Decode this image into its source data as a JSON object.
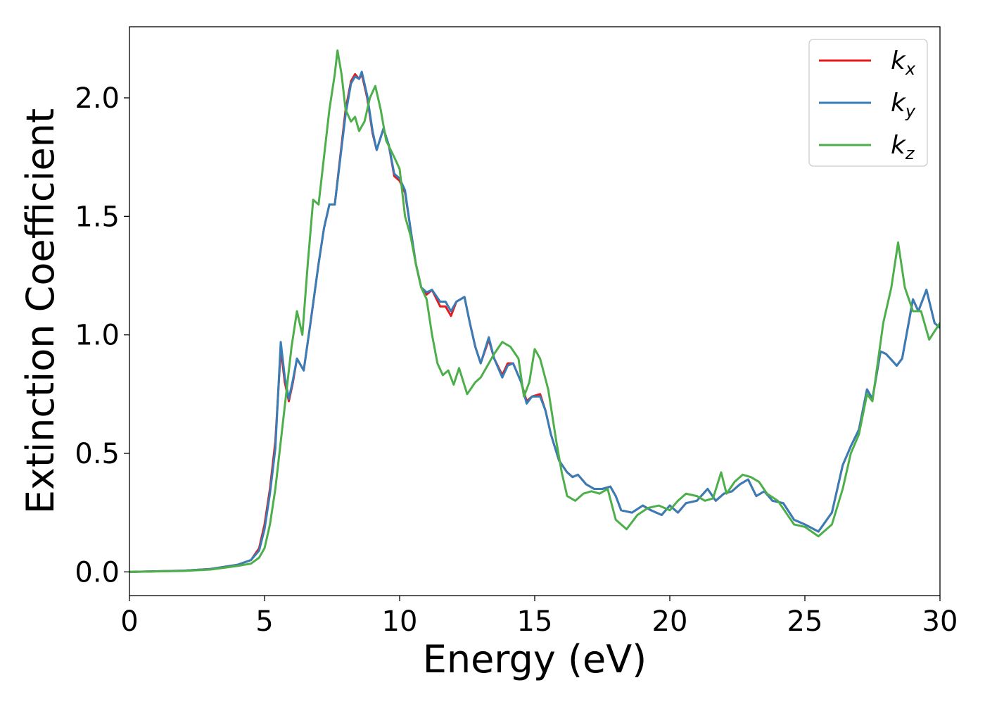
{
  "chart_data": {
    "type": "line",
    "title": "",
    "xlabel": "Energy (eV)",
    "ylabel": "Extinction Coefficient",
    "xlim": [
      0,
      30
    ],
    "ylim": [
      -0.1,
      2.3
    ],
    "xticks": [
      0,
      5,
      10,
      15,
      20,
      25,
      30
    ],
    "yticks": [
      0.0,
      0.5,
      1.0,
      1.5,
      2.0
    ],
    "xtick_labels": [
      "0",
      "5",
      "10",
      "15",
      "20",
      "25",
      "30"
    ],
    "ytick_labels": [
      "0.0",
      "0.5",
      "1.0",
      "1.5",
      "2.0"
    ],
    "grid": false,
    "legend_position": "top-right",
    "series": [
      {
        "name": "k_x",
        "legend_main": "k",
        "legend_sub": "x",
        "color": "#e41a1c",
        "points": [
          [
            0,
            0
          ],
          [
            2,
            0.005
          ],
          [
            3,
            0.012
          ],
          [
            4,
            0.03
          ],
          [
            4.5,
            0.05
          ],
          [
            4.8,
            0.1
          ],
          [
            5,
            0.2
          ],
          [
            5.2,
            0.35
          ],
          [
            5.4,
            0.55
          ],
          [
            5.6,
            0.94
          ],
          [
            5.75,
            0.8
          ],
          [
            5.9,
            0.72
          ],
          [
            6.05,
            0.8
          ],
          [
            6.2,
            0.9
          ],
          [
            6.45,
            0.85
          ],
          [
            6.7,
            1.05
          ],
          [
            7,
            1.3
          ],
          [
            7.2,
            1.45
          ],
          [
            7.4,
            1.55
          ],
          [
            7.6,
            1.55
          ],
          [
            7.8,
            1.75
          ],
          [
            8,
            1.95
          ],
          [
            8.2,
            2.07
          ],
          [
            8.35,
            2.1
          ],
          [
            8.5,
            2.08
          ],
          [
            8.6,
            2.1
          ],
          [
            8.8,
            2.0
          ],
          [
            9,
            1.85
          ],
          [
            9.15,
            1.78
          ],
          [
            9.4,
            1.87
          ],
          [
            9.6,
            1.8
          ],
          [
            9.8,
            1.67
          ],
          [
            10,
            1.65
          ],
          [
            10.2,
            1.6
          ],
          [
            10.4,
            1.45
          ],
          [
            10.6,
            1.3
          ],
          [
            10.8,
            1.2
          ],
          [
            11,
            1.17
          ],
          [
            11.2,
            1.19
          ],
          [
            11.5,
            1.12
          ],
          [
            11.7,
            1.12
          ],
          [
            11.9,
            1.08
          ],
          [
            12.1,
            1.14
          ],
          [
            12.4,
            1.16
          ],
          [
            12.6,
            1.05
          ],
          [
            12.8,
            0.95
          ],
          [
            13,
            0.88
          ],
          [
            13.3,
            0.98
          ],
          [
            13.5,
            0.9
          ],
          [
            13.8,
            0.83
          ],
          [
            14,
            0.88
          ],
          [
            14.2,
            0.88
          ],
          [
            14.5,
            0.8
          ],
          [
            14.7,
            0.72
          ],
          [
            14.9,
            0.74
          ],
          [
            15.2,
            0.75
          ],
          [
            15.4,
            0.68
          ],
          [
            15.6,
            0.58
          ],
          [
            15.9,
            0.47
          ],
          [
            16.2,
            0.42
          ],
          [
            16.4,
            0.4
          ],
          [
            16.6,
            0.41
          ],
          [
            16.9,
            0.37
          ],
          [
            17.2,
            0.35
          ],
          [
            17.5,
            0.35
          ],
          [
            17.8,
            0.36
          ],
          [
            18,
            0.32
          ],
          [
            18.2,
            0.26
          ],
          [
            18.6,
            0.25
          ],
          [
            19,
            0.28
          ],
          [
            19.3,
            0.26
          ],
          [
            19.7,
            0.24
          ],
          [
            20,
            0.28
          ],
          [
            20.3,
            0.25
          ],
          [
            20.6,
            0.29
          ],
          [
            21,
            0.3
          ],
          [
            21.4,
            0.35
          ],
          [
            21.7,
            0.3
          ],
          [
            22,
            0.33
          ],
          [
            22.3,
            0.34
          ],
          [
            22.6,
            0.37
          ],
          [
            22.9,
            0.39
          ],
          [
            23.2,
            0.32
          ],
          [
            23.5,
            0.34
          ],
          [
            23.8,
            0.3
          ],
          [
            24.2,
            0.29
          ],
          [
            24.6,
            0.22
          ],
          [
            25,
            0.2
          ],
          [
            25.5,
            0.17
          ],
          [
            26,
            0.25
          ],
          [
            26.4,
            0.45
          ],
          [
            26.7,
            0.53
          ],
          [
            27,
            0.6
          ],
          [
            27.3,
            0.77
          ],
          [
            27.5,
            0.73
          ],
          [
            27.8,
            0.93
          ],
          [
            28,
            0.92
          ],
          [
            28.4,
            0.87
          ],
          [
            28.6,
            0.9
          ],
          [
            29,
            1.15
          ],
          [
            29.2,
            1.1
          ],
          [
            29.5,
            1.19
          ],
          [
            29.8,
            1.05
          ],
          [
            30,
            1.03
          ]
        ]
      },
      {
        "name": "k_y",
        "legend_main": "k",
        "legend_sub": "y",
        "color": "#377eb8",
        "points": [
          [
            0,
            0
          ],
          [
            2,
            0.005
          ],
          [
            3,
            0.012
          ],
          [
            4,
            0.03
          ],
          [
            4.5,
            0.05
          ],
          [
            4.8,
            0.09
          ],
          [
            5,
            0.18
          ],
          [
            5.2,
            0.33
          ],
          [
            5.4,
            0.52
          ],
          [
            5.6,
            0.97
          ],
          [
            5.75,
            0.82
          ],
          [
            5.9,
            0.73
          ],
          [
            6.05,
            0.81
          ],
          [
            6.2,
            0.9
          ],
          [
            6.45,
            0.85
          ],
          [
            6.7,
            1.05
          ],
          [
            7,
            1.3
          ],
          [
            7.2,
            1.45
          ],
          [
            7.4,
            1.55
          ],
          [
            7.6,
            1.55
          ],
          [
            7.8,
            1.74
          ],
          [
            8,
            1.93
          ],
          [
            8.2,
            2.06
          ],
          [
            8.35,
            2.09
          ],
          [
            8.5,
            2.08
          ],
          [
            8.6,
            2.11
          ],
          [
            8.8,
            2.01
          ],
          [
            9,
            1.86
          ],
          [
            9.15,
            1.78
          ],
          [
            9.4,
            1.87
          ],
          [
            9.6,
            1.8
          ],
          [
            9.8,
            1.68
          ],
          [
            10,
            1.66
          ],
          [
            10.2,
            1.61
          ],
          [
            10.4,
            1.45
          ],
          [
            10.6,
            1.3
          ],
          [
            10.8,
            1.2
          ],
          [
            11,
            1.18
          ],
          [
            11.2,
            1.19
          ],
          [
            11.5,
            1.14
          ],
          [
            11.7,
            1.14
          ],
          [
            11.9,
            1.1
          ],
          [
            12.1,
            1.14
          ],
          [
            12.4,
            1.16
          ],
          [
            12.6,
            1.05
          ],
          [
            12.8,
            0.95
          ],
          [
            13,
            0.88
          ],
          [
            13.3,
            0.99
          ],
          [
            13.5,
            0.9
          ],
          [
            13.8,
            0.82
          ],
          [
            14,
            0.87
          ],
          [
            14.2,
            0.88
          ],
          [
            14.5,
            0.8
          ],
          [
            14.7,
            0.71
          ],
          [
            14.9,
            0.74
          ],
          [
            15.2,
            0.74
          ],
          [
            15.4,
            0.68
          ],
          [
            15.6,
            0.58
          ],
          [
            15.9,
            0.47
          ],
          [
            16.2,
            0.42
          ],
          [
            16.4,
            0.4
          ],
          [
            16.6,
            0.41
          ],
          [
            16.9,
            0.37
          ],
          [
            17.2,
            0.35
          ],
          [
            17.5,
            0.35
          ],
          [
            17.8,
            0.36
          ],
          [
            18,
            0.32
          ],
          [
            18.2,
            0.26
          ],
          [
            18.6,
            0.25
          ],
          [
            19,
            0.28
          ],
          [
            19.3,
            0.26
          ],
          [
            19.7,
            0.24
          ],
          [
            20,
            0.28
          ],
          [
            20.3,
            0.25
          ],
          [
            20.6,
            0.29
          ],
          [
            21,
            0.3
          ],
          [
            21.4,
            0.35
          ],
          [
            21.7,
            0.3
          ],
          [
            22,
            0.33
          ],
          [
            22.3,
            0.34
          ],
          [
            22.6,
            0.37
          ],
          [
            22.9,
            0.39
          ],
          [
            23.2,
            0.32
          ],
          [
            23.5,
            0.34
          ],
          [
            23.8,
            0.3
          ],
          [
            24.2,
            0.29
          ],
          [
            24.6,
            0.22
          ],
          [
            25,
            0.2
          ],
          [
            25.5,
            0.17
          ],
          [
            26,
            0.25
          ],
          [
            26.4,
            0.45
          ],
          [
            26.7,
            0.53
          ],
          [
            27,
            0.6
          ],
          [
            27.3,
            0.77
          ],
          [
            27.5,
            0.73
          ],
          [
            27.8,
            0.93
          ],
          [
            28,
            0.92
          ],
          [
            28.4,
            0.87
          ],
          [
            28.6,
            0.9
          ],
          [
            29,
            1.15
          ],
          [
            29.2,
            1.1
          ],
          [
            29.5,
            1.19
          ],
          [
            29.8,
            1.05
          ],
          [
            30,
            1.03
          ]
        ]
      },
      {
        "name": "k_z",
        "legend_main": "k",
        "legend_sub": "z",
        "color": "#4daf4a",
        "points": [
          [
            0,
            0
          ],
          [
            2,
            0.004
          ],
          [
            3,
            0.01
          ],
          [
            4,
            0.025
          ],
          [
            4.5,
            0.035
          ],
          [
            4.8,
            0.06
          ],
          [
            5,
            0.1
          ],
          [
            5.2,
            0.2
          ],
          [
            5.4,
            0.35
          ],
          [
            5.6,
            0.55
          ],
          [
            5.8,
            0.75
          ],
          [
            6,
            0.95
          ],
          [
            6.2,
            1.1
          ],
          [
            6.4,
            1.0
          ],
          [
            6.6,
            1.3
          ],
          [
            6.8,
            1.57
          ],
          [
            7,
            1.55
          ],
          [
            7.2,
            1.75
          ],
          [
            7.4,
            1.95
          ],
          [
            7.6,
            2.1
          ],
          [
            7.7,
            2.2
          ],
          [
            7.85,
            2.1
          ],
          [
            8,
            1.95
          ],
          [
            8.2,
            1.9
          ],
          [
            8.35,
            1.92
          ],
          [
            8.5,
            1.86
          ],
          [
            8.7,
            1.9
          ],
          [
            8.9,
            2.0
          ],
          [
            9.1,
            2.05
          ],
          [
            9.3,
            1.95
          ],
          [
            9.5,
            1.82
          ],
          [
            9.8,
            1.75
          ],
          [
            10,
            1.7
          ],
          [
            10.2,
            1.5
          ],
          [
            10.4,
            1.42
          ],
          [
            10.6,
            1.3
          ],
          [
            10.8,
            1.2
          ],
          [
            11,
            1.15
          ],
          [
            11.2,
            1.0
          ],
          [
            11.4,
            0.88
          ],
          [
            11.6,
            0.83
          ],
          [
            11.8,
            0.85
          ],
          [
            12,
            0.79
          ],
          [
            12.2,
            0.86
          ],
          [
            12.5,
            0.75
          ],
          [
            12.8,
            0.8
          ],
          [
            13,
            0.82
          ],
          [
            13.3,
            0.88
          ],
          [
            13.5,
            0.92
          ],
          [
            13.8,
            0.97
          ],
          [
            14.1,
            0.95
          ],
          [
            14.4,
            0.9
          ],
          [
            14.6,
            0.74
          ],
          [
            14.8,
            0.8
          ],
          [
            15,
            0.94
          ],
          [
            15.2,
            0.9
          ],
          [
            15.5,
            0.77
          ],
          [
            15.8,
            0.55
          ],
          [
            16,
            0.42
          ],
          [
            16.2,
            0.32
          ],
          [
            16.5,
            0.3
          ],
          [
            16.8,
            0.33
          ],
          [
            17.1,
            0.34
          ],
          [
            17.4,
            0.33
          ],
          [
            17.7,
            0.35
          ],
          [
            18,
            0.22
          ],
          [
            18.4,
            0.18
          ],
          [
            18.8,
            0.24
          ],
          [
            19.2,
            0.27
          ],
          [
            19.6,
            0.28
          ],
          [
            20,
            0.26
          ],
          [
            20.3,
            0.3
          ],
          [
            20.6,
            0.33
          ],
          [
            21,
            0.32
          ],
          [
            21.3,
            0.3
          ],
          [
            21.6,
            0.31
          ],
          [
            21.9,
            0.42
          ],
          [
            22.1,
            0.33
          ],
          [
            22.4,
            0.38
          ],
          [
            22.7,
            0.41
          ],
          [
            23,
            0.4
          ],
          [
            23.3,
            0.38
          ],
          [
            23.6,
            0.33
          ],
          [
            24,
            0.3
          ],
          [
            24.3,
            0.25
          ],
          [
            24.6,
            0.2
          ],
          [
            25,
            0.19
          ],
          [
            25.5,
            0.15
          ],
          [
            26,
            0.2
          ],
          [
            26.4,
            0.35
          ],
          [
            26.7,
            0.5
          ],
          [
            27,
            0.58
          ],
          [
            27.3,
            0.75
          ],
          [
            27.5,
            0.72
          ],
          [
            27.9,
            1.05
          ],
          [
            28.2,
            1.2
          ],
          [
            28.45,
            1.39
          ],
          [
            28.7,
            1.2
          ],
          [
            29,
            1.1
          ],
          [
            29.3,
            1.1
          ],
          [
            29.6,
            0.98
          ],
          [
            30,
            1.05
          ]
        ]
      }
    ]
  }
}
